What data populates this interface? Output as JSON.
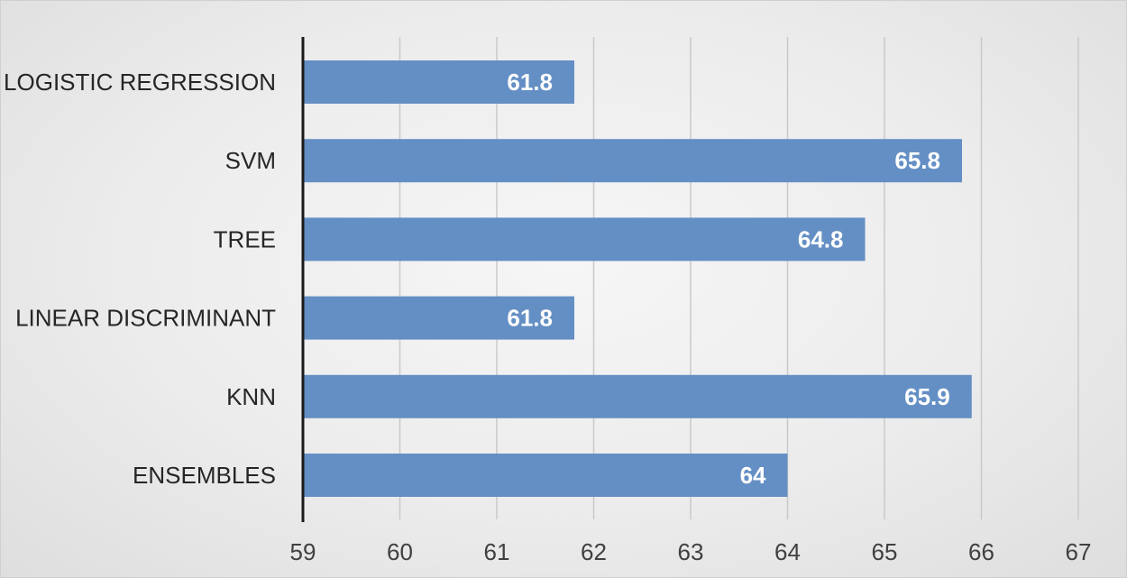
{
  "chart_data": {
    "type": "bar",
    "orientation": "horizontal",
    "categories": [
      "LOGISTIC REGRESSION",
      "SVM",
      "TREE",
      "LINEAR DISCRIMINANT",
      "KNN",
      "ENSEMBLES"
    ],
    "values": [
      61.8,
      65.8,
      64.8,
      61.8,
      65.9,
      64
    ],
    "data_labels": [
      "61.8",
      "65.8",
      "64.8",
      "61.8",
      "65.9",
      "64"
    ],
    "xlim": [
      59,
      67
    ],
    "x_ticks": [
      59,
      60,
      61,
      62,
      63,
      64,
      65,
      66,
      67
    ],
    "title": "",
    "xlabel": "",
    "ylabel": "",
    "grid": "vertical",
    "legend": "none",
    "colors": {
      "bar": "#648fc4",
      "data_label": "#ffffff",
      "gridline": "#c9c9c9",
      "axis": "#1a1a1a"
    }
  }
}
